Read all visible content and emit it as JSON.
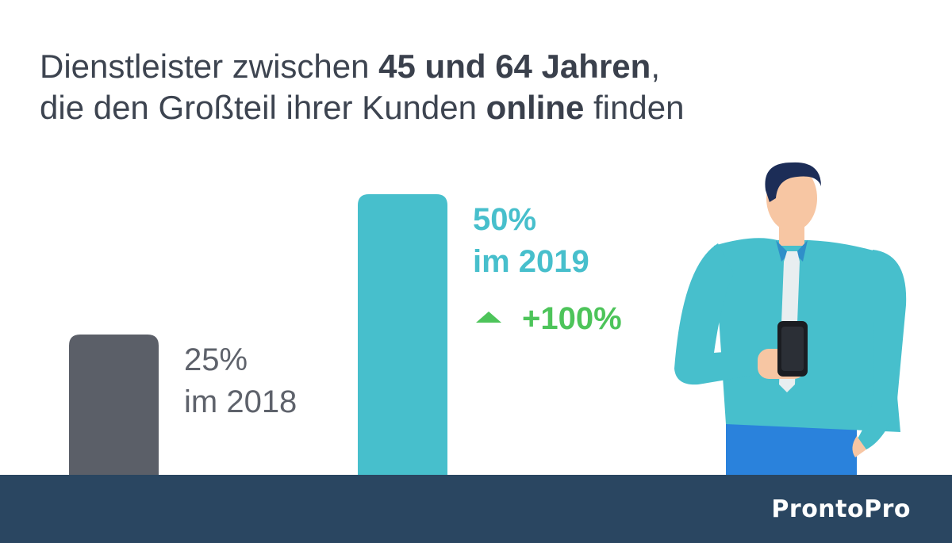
{
  "title": {
    "line1_part1": "Dienstleister zwischen ",
    "line1_bold": "45 und 64 Jahren",
    "line1_part2": ",",
    "line2_part1": "die den Großteil ihrer Kunden ",
    "line2_bold": "online",
    "line2_part2": " finden"
  },
  "chart_data": {
    "type": "bar",
    "categories": [
      "2018",
      "2019"
    ],
    "values": [
      25,
      50
    ],
    "unit": "%",
    "labels": [
      {
        "value": "25%",
        "year_text": "im 2018"
      },
      {
        "value": "50%",
        "year_text": "im 2019"
      }
    ],
    "change": "+100%",
    "colors": {
      "2018": "#5b5f68",
      "2019": "#47bfcc",
      "change": "#4dc45a"
    },
    "ylim": [
      0,
      50
    ],
    "grid": false
  },
  "footer": {
    "logo": "ProntoPro",
    "background": "#2a4661"
  },
  "illustration": {
    "icon": "businessman-with-phone-icon"
  }
}
